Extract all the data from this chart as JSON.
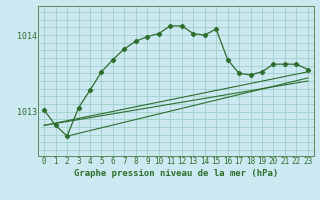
{
  "title": "Graphe pression niveau de la mer (hPa)",
  "background_color": "#cce8f0",
  "grid_color": "#9ecfca",
  "line_color": "#2d6e2d",
  "spine_color": "#5a8a5a",
  "x_ticks": [
    0,
    1,
    2,
    3,
    4,
    5,
    6,
    7,
    8,
    9,
    10,
    11,
    12,
    13,
    14,
    15,
    16,
    17,
    18,
    19,
    20,
    21,
    22,
    23
  ],
  "y_ticks": [
    1013,
    1014
  ],
  "ylim": [
    1012.42,
    1014.38
  ],
  "xlim": [
    -0.5,
    23.5
  ],
  "main_series": [
    [
      0,
      1013.02
    ],
    [
      1,
      1012.82
    ],
    [
      2,
      1012.68
    ],
    [
      3,
      1013.05
    ],
    [
      4,
      1013.28
    ],
    [
      5,
      1013.52
    ],
    [
      6,
      1013.68
    ],
    [
      7,
      1013.82
    ],
    [
      8,
      1013.92
    ],
    [
      9,
      1013.98
    ],
    [
      10,
      1014.02
    ],
    [
      11,
      1014.12
    ],
    [
      12,
      1014.12
    ],
    [
      13,
      1014.02
    ],
    [
      14,
      1014.0
    ],
    [
      15,
      1014.08
    ],
    [
      16,
      1013.68
    ],
    [
      17,
      1013.5
    ],
    [
      18,
      1013.48
    ],
    [
      19,
      1013.52
    ],
    [
      20,
      1013.62
    ],
    [
      21,
      1013.62
    ],
    [
      22,
      1013.62
    ],
    [
      23,
      1013.55
    ]
  ],
  "trend_series1": [
    [
      0,
      1012.82
    ],
    [
      23,
      1013.52
    ]
  ],
  "trend_series2": [
    [
      0,
      1012.82
    ],
    [
      23,
      1013.4
    ]
  ],
  "trend_series3": [
    [
      2,
      1012.68
    ],
    [
      23,
      1013.44
    ]
  ],
  "tick_fontsize": 6,
  "xlabel_fontsize": 6.5
}
